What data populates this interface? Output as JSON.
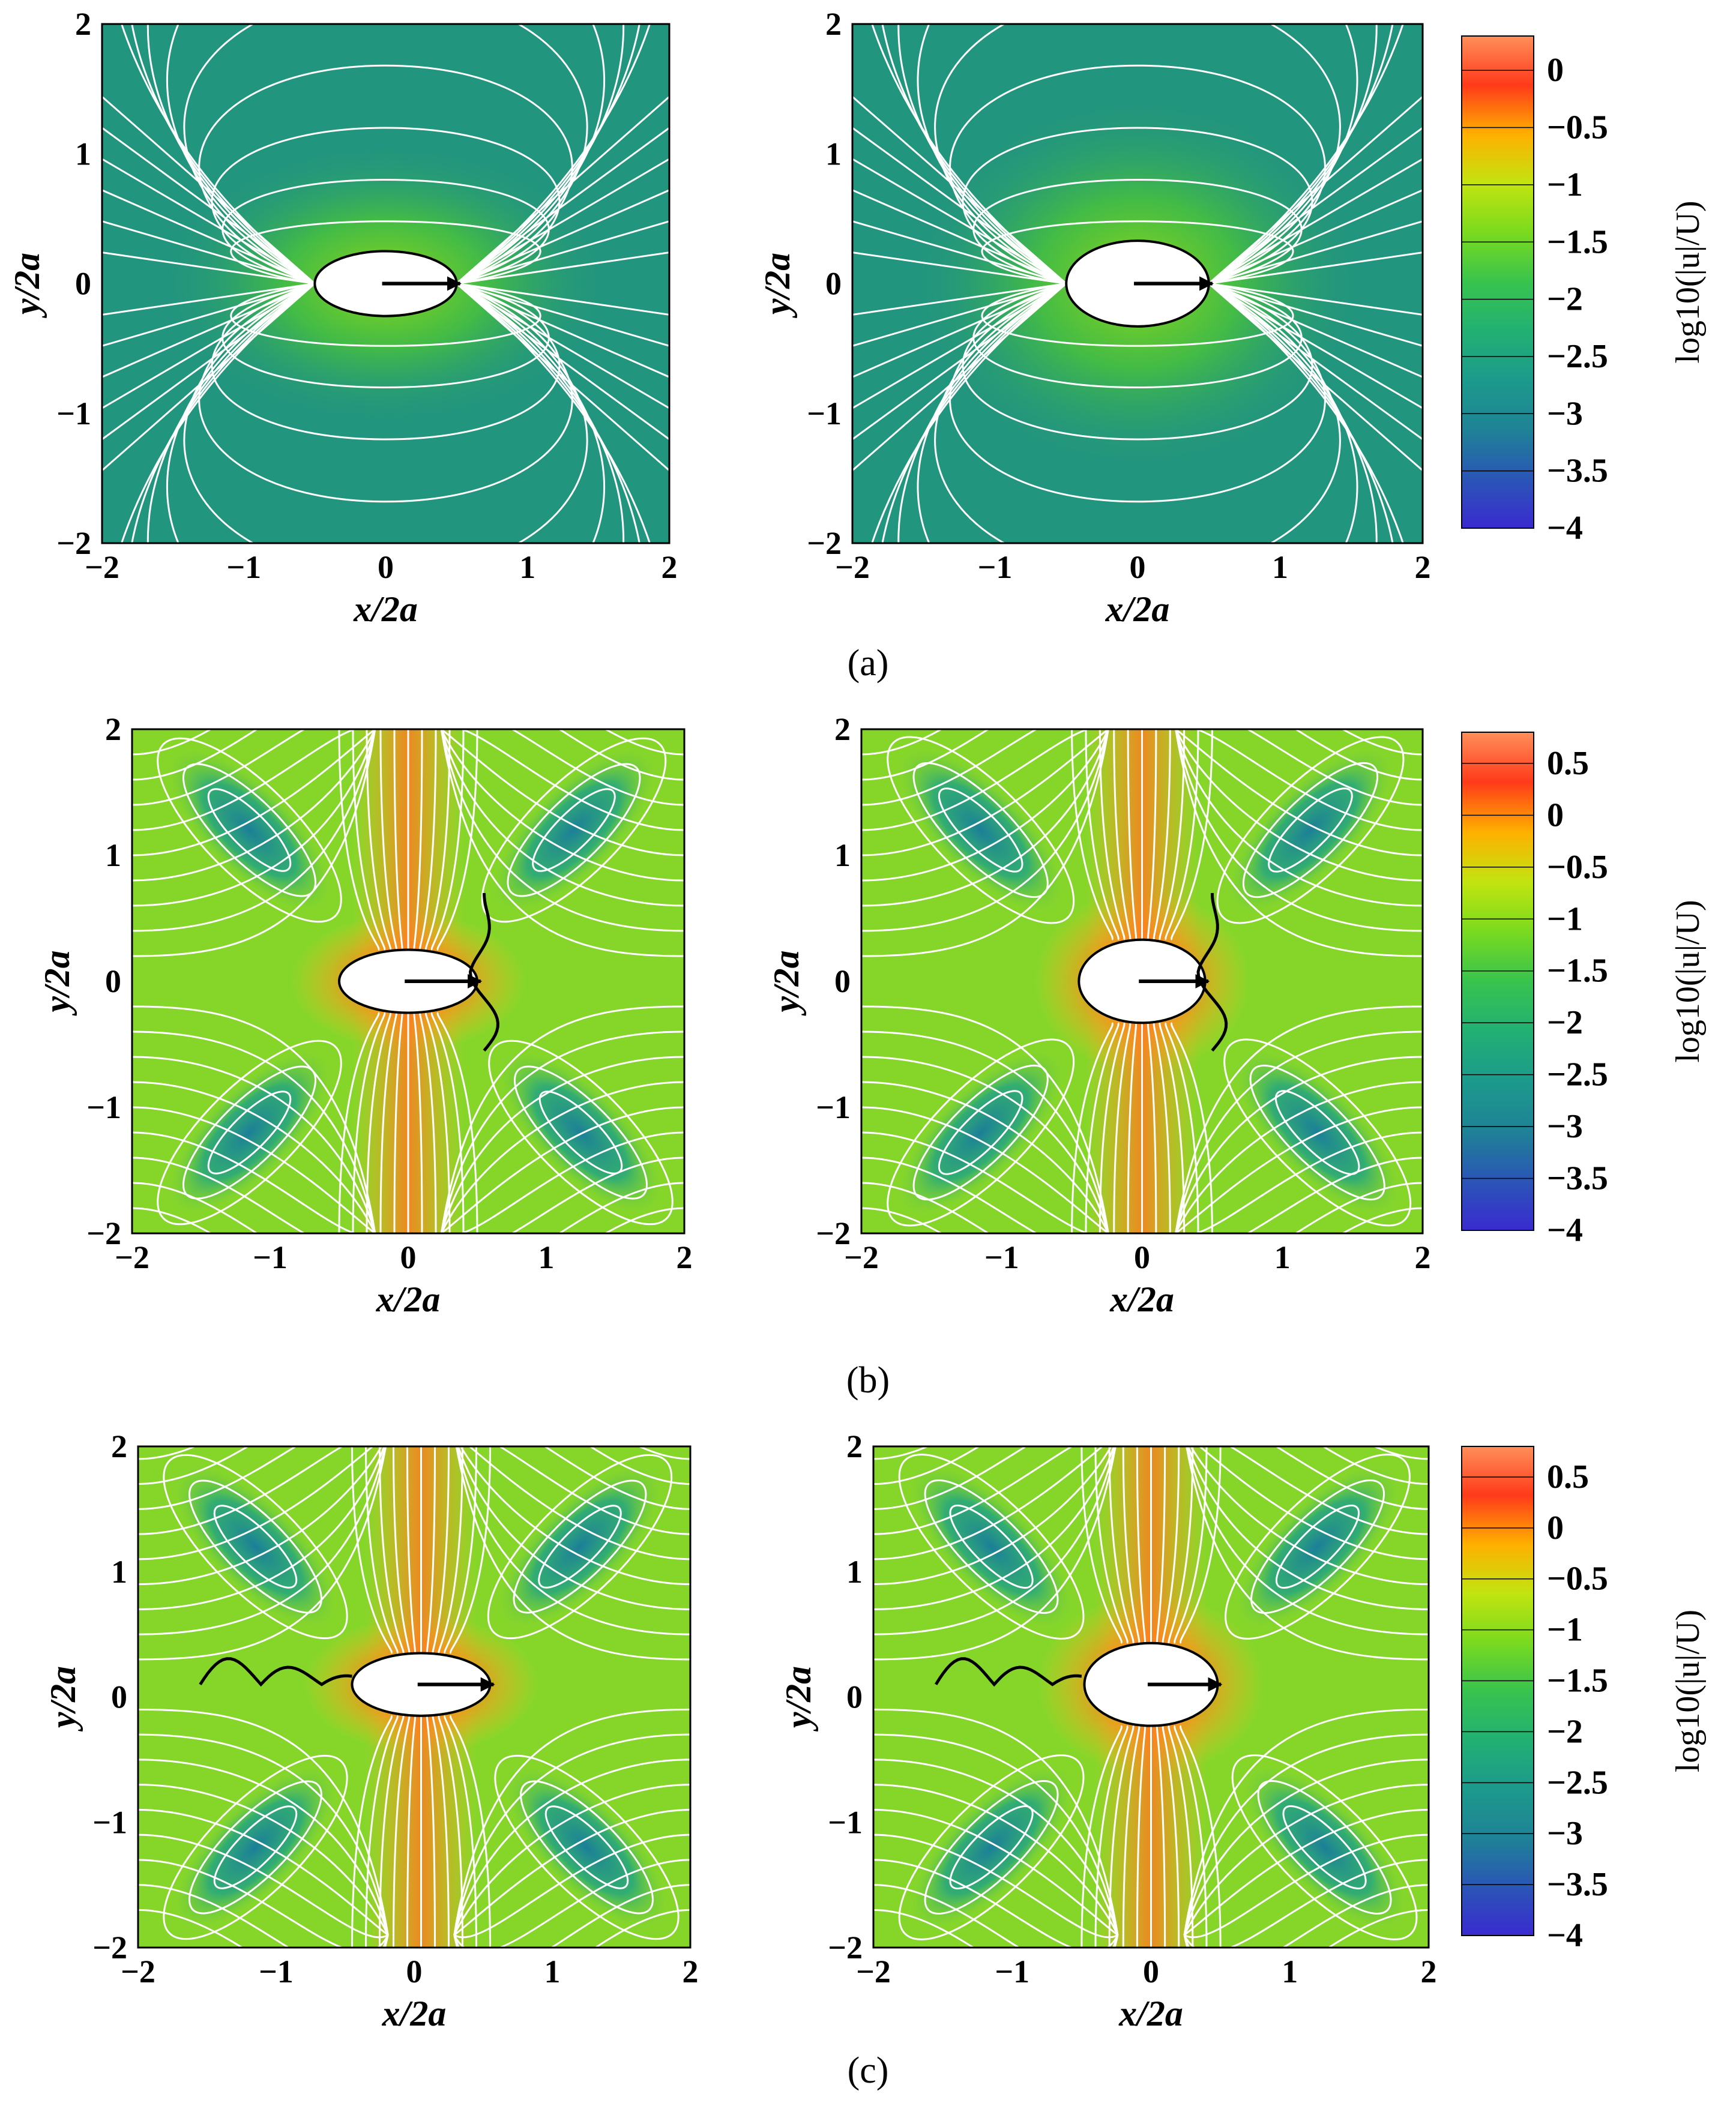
{
  "panel_labels": [
    "(a)",
    "(b)",
    "(c)"
  ],
  "axis_titles": {
    "x": "x/2a",
    "y": "y/2a"
  },
  "colors": {
    "streamline": "#ffffff",
    "arrow": "#000000",
    "body_fill": "#ffffff",
    "colormap": [
      "#3a2ad0",
      "#2a56b6",
      "#1f8296",
      "#1c9a8c",
      "#22b073",
      "#38c34e",
      "#7ada1f",
      "#c2e410",
      "#ffb000",
      "#ff3a1a",
      "#ff8f5a"
    ]
  },
  "colorbar_label": "log10(|u|/U)",
  "chart_data": [
    {
      "type": "heatmap",
      "row": "a",
      "column": "left",
      "xlabel": "x/2a",
      "ylabel": "y/2a",
      "xlim": [
        -2,
        2
      ],
      "ylim": [
        -2,
        2
      ],
      "x_ticks": [
        "−2",
        "−1",
        "0",
        "1",
        "2"
      ],
      "y_ticks": [
        "−2",
        "−1",
        "0",
        "1",
        "2"
      ],
      "body": {
        "shape": "ellipse",
        "center": [
          0,
          0
        ],
        "semi_axes": [
          0.5,
          0.25
        ],
        "motion": "+x"
      },
      "field": "log10(|u|/U)",
      "background_level": -1.5,
      "streamlines": "dipole"
    },
    {
      "type": "heatmap",
      "row": "a",
      "column": "right",
      "xlabel": "x/2a",
      "ylabel": "y/2a",
      "xlim": [
        -2,
        2
      ],
      "ylim": [
        -2,
        2
      ],
      "x_ticks": [
        "−2",
        "−1",
        "0",
        "1",
        "2"
      ],
      "y_ticks": [
        "−2",
        "−1",
        "0",
        "1",
        "2"
      ],
      "body": {
        "shape": "ellipse",
        "center": [
          0,
          0
        ],
        "semi_axes": [
          0.5,
          0.33
        ],
        "motion": "+x"
      },
      "field": "log10(|u|/U)",
      "background_level": -1.5,
      "streamlines": "dipole",
      "colorbar": {
        "label": "log10(|u|/U)",
        "range": [
          -4,
          0.3
        ],
        "ticks": [
          "0",
          "−0.5",
          "−1",
          "−1.5",
          "−2",
          "−2.5",
          "−3",
          "−3.5",
          "−4"
        ]
      }
    },
    {
      "type": "heatmap",
      "row": "b",
      "column": "left",
      "xlabel": "x/2a",
      "ylabel": "y/2a",
      "xlim": [
        -2,
        2
      ],
      "ylim": [
        -2,
        2
      ],
      "x_ticks": [
        "−2",
        "−1",
        "0",
        "1",
        "2"
      ],
      "y_ticks": [
        "−2",
        "−1",
        "0",
        "1",
        "2"
      ],
      "body": {
        "shape": "ellipse",
        "center": [
          0,
          0
        ],
        "semi_axes": [
          0.5,
          0.25
        ],
        "motion": "+x"
      },
      "field": "log10(|u|/U)",
      "background_level": -0.6,
      "streamlines": "quadrupole",
      "wave": {
        "orientation": "vertical",
        "x": 0.55,
        "y_range": [
          -0.55,
          0.7
        ]
      }
    },
    {
      "type": "heatmap",
      "row": "b",
      "column": "right",
      "xlabel": "x/2a",
      "ylabel": "y/2a",
      "xlim": [
        -2,
        2
      ],
      "ylim": [
        -2,
        2
      ],
      "x_ticks": [
        "−2",
        "−1",
        "0",
        "1",
        "2"
      ],
      "y_ticks": [
        "−2",
        "−1",
        "0",
        "1",
        "2"
      ],
      "body": {
        "shape": "ellipse",
        "center": [
          0,
          0
        ],
        "semi_axes": [
          0.45,
          0.33
        ],
        "motion": "+x"
      },
      "field": "log10(|u|/U)",
      "background_level": -0.6,
      "streamlines": "quadrupole",
      "wave": {
        "orientation": "vertical",
        "x": 0.5,
        "y_range": [
          -0.55,
          0.7
        ]
      },
      "colorbar": {
        "label": "log10(|u|/U)",
        "range": [
          -4,
          0.8
        ],
        "ticks": [
          "0.5",
          "0",
          "−0.5",
          "−1",
          "−1.5",
          "−2",
          "−2.5",
          "−3",
          "−3.5",
          "−4"
        ]
      }
    },
    {
      "type": "heatmap",
      "row": "c",
      "column": "left",
      "xlabel": "x/2a",
      "ylabel": "y/2a",
      "xlim": [
        -2,
        2
      ],
      "ylim": [
        -2,
        2
      ],
      "x_ticks": [
        "−2",
        "−1",
        "0",
        "1",
        "2"
      ],
      "y_ticks": [
        "−2",
        "−1",
        "0",
        "1",
        "2"
      ],
      "body": {
        "shape": "ellipse",
        "center": [
          0.05,
          0.1
        ],
        "semi_axes": [
          0.5,
          0.25
        ],
        "motion": "+x"
      },
      "field": "log10(|u|/U)",
      "background_level": -0.6,
      "streamlines": "quadrupole",
      "wave": {
        "orientation": "horizontal",
        "y": 0.1,
        "x_range": [
          -1.55,
          -0.45
        ]
      }
    },
    {
      "type": "heatmap",
      "row": "c",
      "column": "right",
      "xlabel": "x/2a",
      "ylabel": "y/2a",
      "xlim": [
        -2,
        2
      ],
      "ylim": [
        -2,
        2
      ],
      "x_ticks": [
        "−2",
        "−1",
        "0",
        "1",
        "2"
      ],
      "y_ticks": [
        "−2",
        "−1",
        "0",
        "1",
        "2"
      ],
      "body": {
        "shape": "ellipse",
        "center": [
          0,
          0.1
        ],
        "semi_axes": [
          0.48,
          0.33
        ],
        "motion": "+x"
      },
      "field": "log10(|u|/U)",
      "background_level": -0.6,
      "streamlines": "quadrupole",
      "wave": {
        "orientation": "horizontal",
        "y": 0.1,
        "x_range": [
          -1.55,
          -0.5
        ]
      },
      "colorbar": {
        "label": "log10(|u|/U)",
        "range": [
          -4,
          0.8
        ],
        "ticks": [
          "0.5",
          "0",
          "−0.5",
          "−1",
          "−1.5",
          "−2",
          "−2.5",
          "−3",
          "−3.5",
          "−4"
        ]
      }
    }
  ]
}
